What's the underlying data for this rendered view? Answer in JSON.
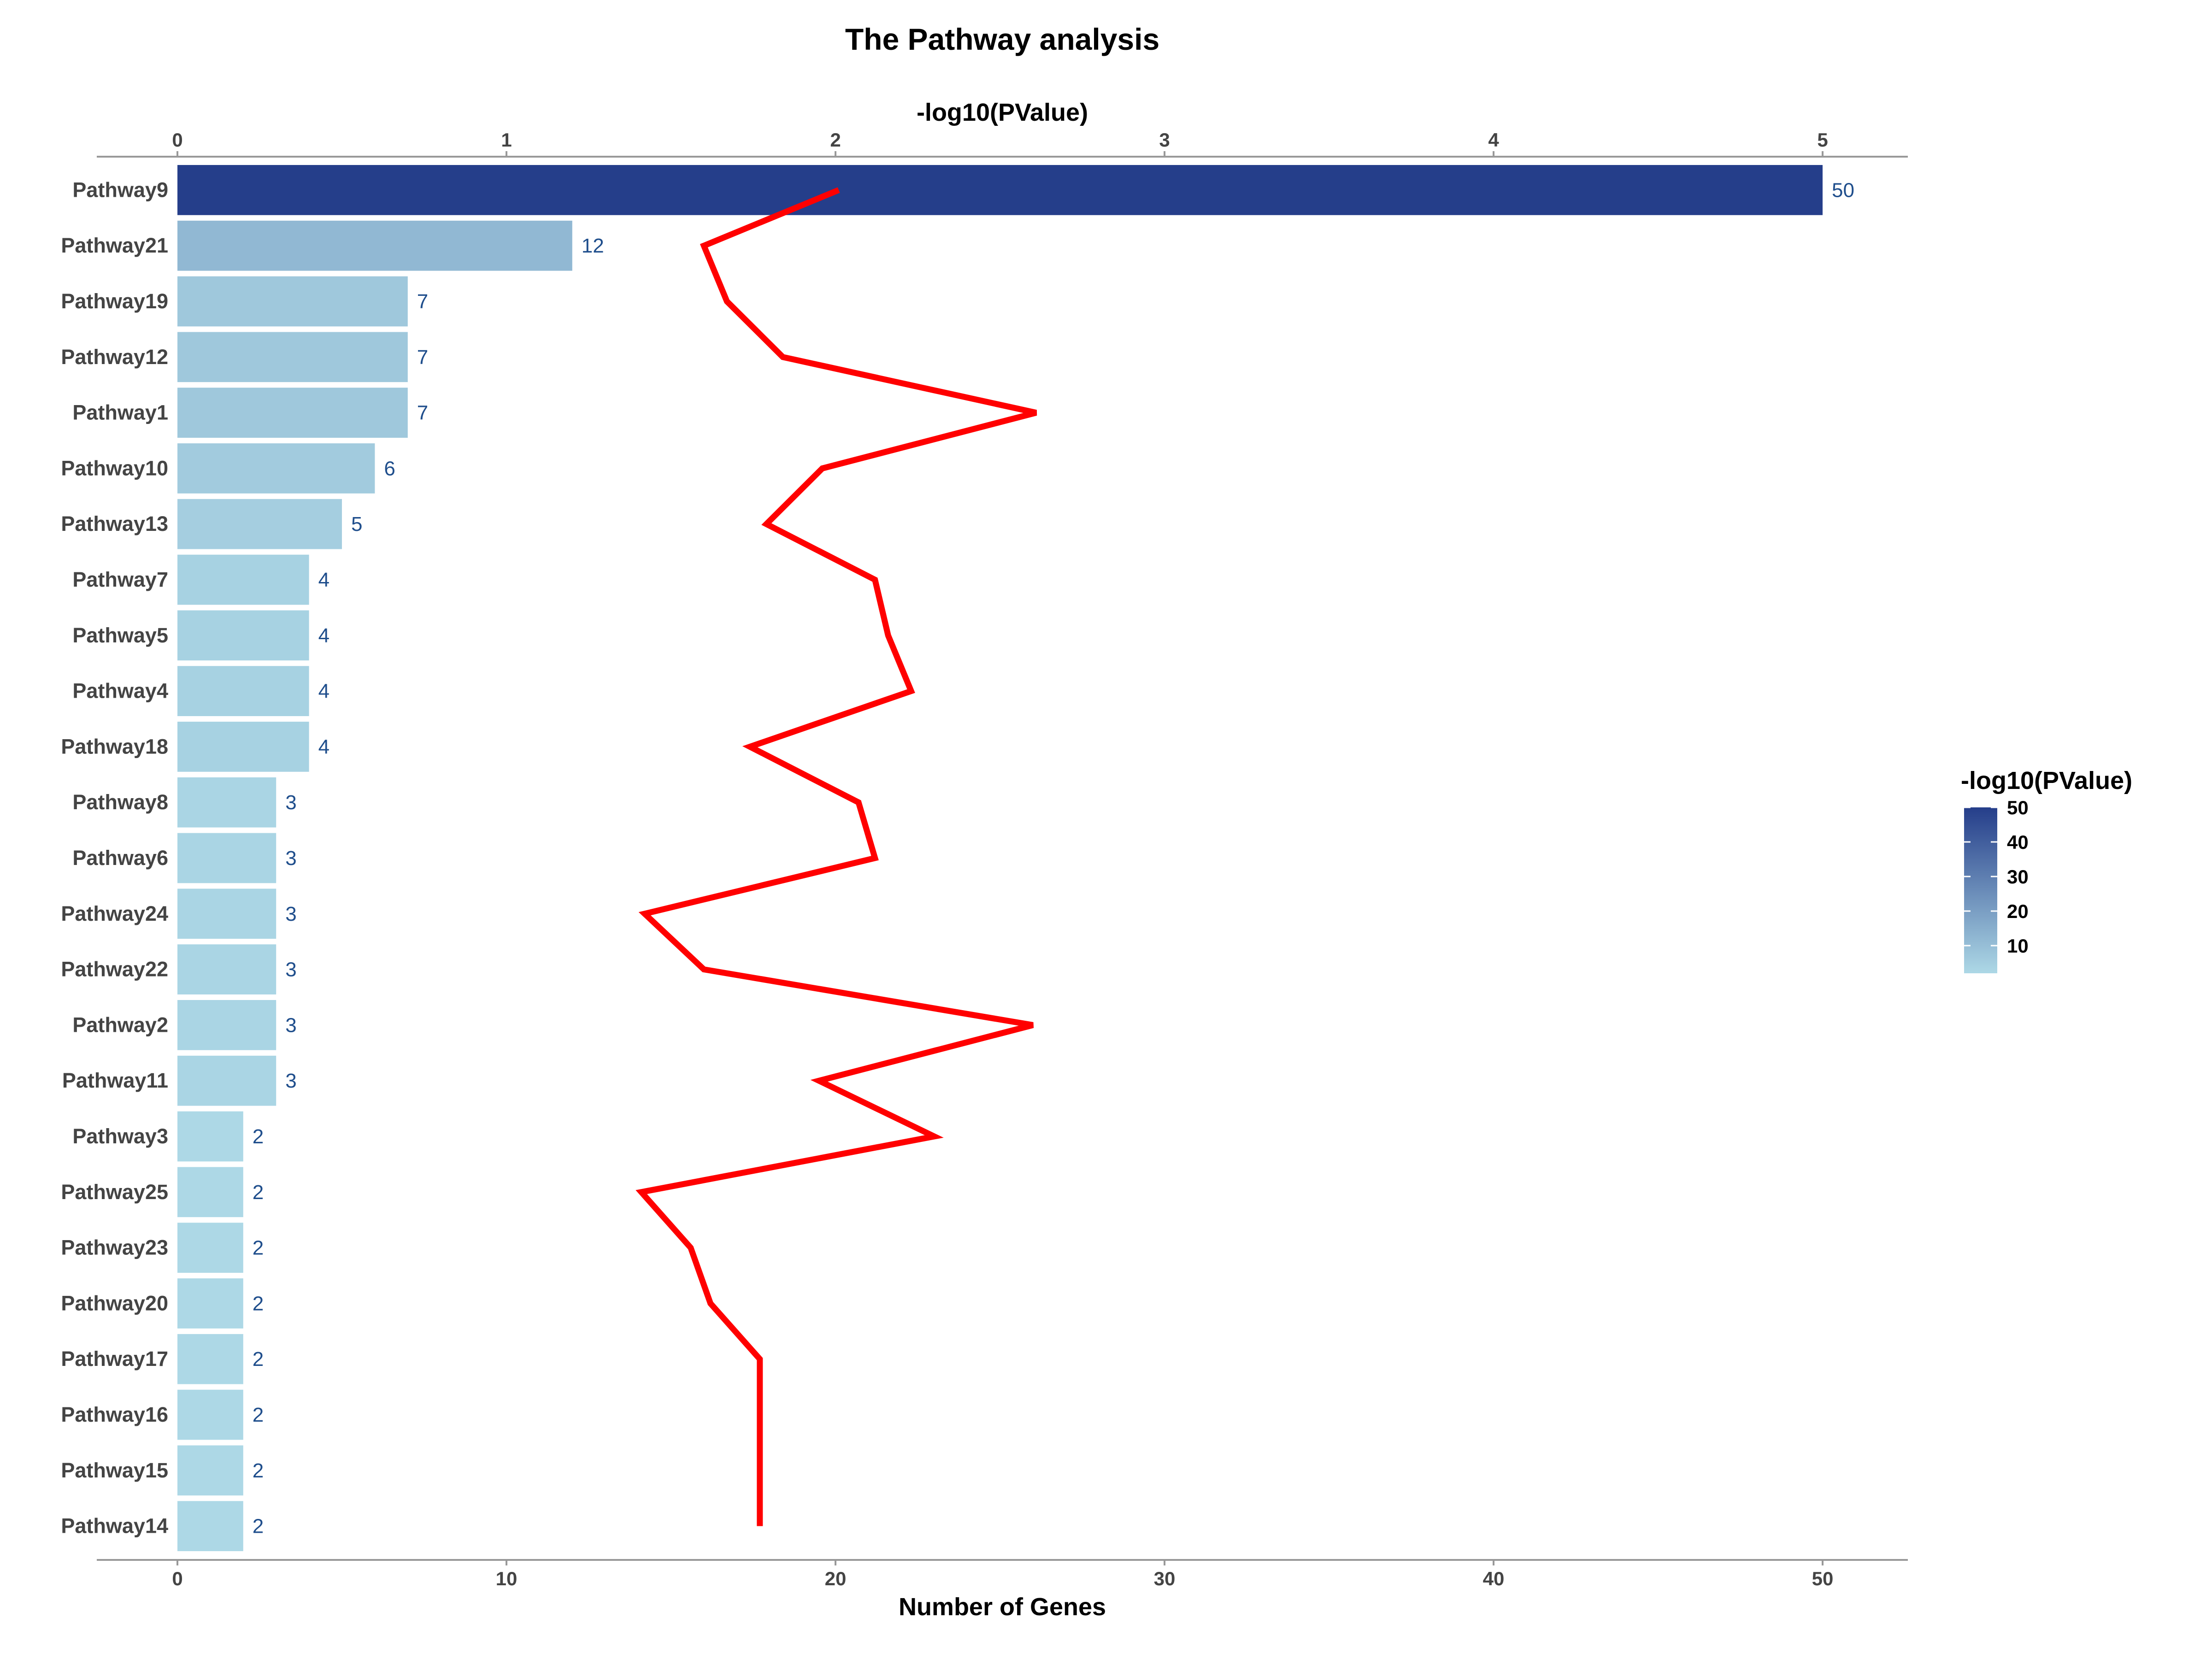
{
  "chart_data": {
    "type": "bar",
    "orientation": "horizontal",
    "title": "The Pathway analysis",
    "xlabel": "Number of Genes",
    "x2label": "-log10(PValue)",
    "xlim": [
      0,
      50
    ],
    "x2lim": [
      0,
      5
    ],
    "x_ticks": [
      "0",
      "10",
      "20",
      "30",
      "40",
      "50"
    ],
    "x2_ticks": [
      "0",
      "1",
      "2",
      "3",
      "4",
      "5"
    ],
    "grid": false,
    "categories": [
      "Pathway9",
      "Pathway21",
      "Pathway19",
      "Pathway12",
      "Pathway1",
      "Pathway10",
      "Pathway13",
      "Pathway7",
      "Pathway5",
      "Pathway4",
      "Pathway18",
      "Pathway8",
      "Pathway6",
      "Pathway24",
      "Pathway22",
      "Pathway2",
      "Pathway11",
      "Pathway3",
      "Pathway25",
      "Pathway23",
      "Pathway20",
      "Pathway17",
      "Pathway16",
      "Pathway15",
      "Pathway14"
    ],
    "series": [
      {
        "type": "bar",
        "axis": "bottom",
        "values": [
          50,
          12,
          7,
          7,
          7,
          6,
          5,
          4,
          4,
          4,
          4,
          3,
          3,
          3,
          3,
          3,
          3,
          2,
          2,
          2,
          2,
          2,
          2,
          2,
          2
        ],
        "labels": [
          "50",
          "12",
          "7",
          "7",
          "7",
          "6",
          "5",
          "4",
          "4",
          "4",
          "4",
          "3",
          "3",
          "3",
          "3",
          "3",
          "3",
          "2",
          "2",
          "2",
          "2",
          "2",
          "2",
          "2",
          "2"
        ]
      },
      {
        "type": "line",
        "axis": "top",
        "color": "#FF0000",
        "values": [
          2.01,
          1.6,
          1.67,
          1.84,
          2.61,
          1.96,
          1.79,
          2.12,
          2.16,
          2.23,
          1.74,
          2.07,
          2.12,
          1.42,
          1.6,
          2.6,
          1.95,
          2.3,
          1.41,
          1.56,
          1.62,
          1.77,
          1.77,
          1.77,
          1.77
        ]
      }
    ],
    "legend": {
      "title": "-log10(PValue)",
      "position": "right",
      "ticks": [
        "50",
        "40",
        "30",
        "20",
        "10"
      ],
      "tick_values": [
        50,
        40,
        30,
        20,
        10
      ],
      "range": [
        2,
        50
      ],
      "color_low": "#ADD8E6",
      "color_high": "#253E8A"
    }
  }
}
